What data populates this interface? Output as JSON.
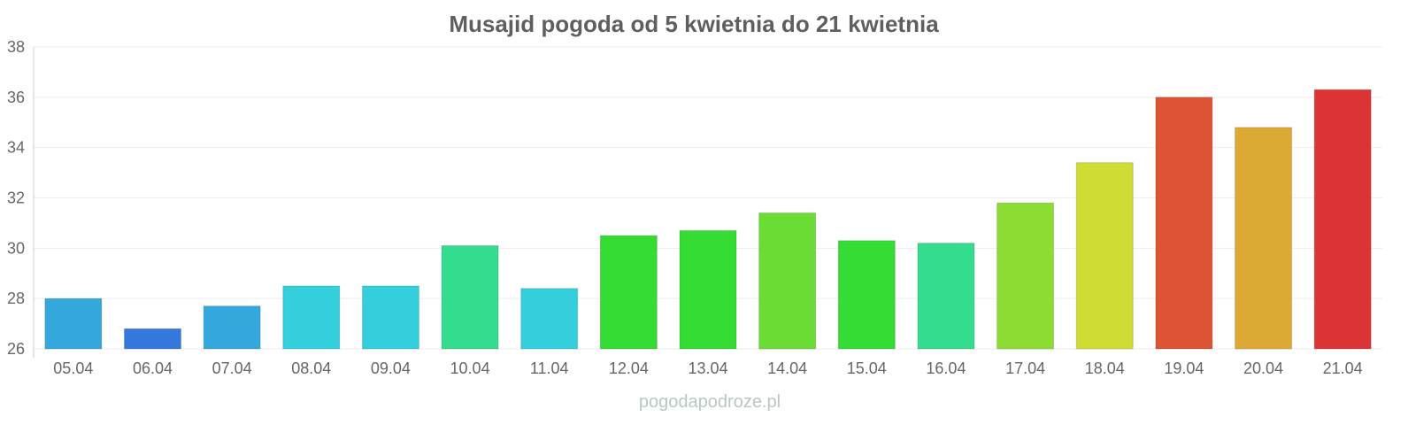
{
  "chart_data": {
    "type": "bar",
    "title": "Musajid pogoda od 5 kwietnia do 21 kwietnia",
    "xlabel": "",
    "ylabel": "",
    "ylim": [
      26,
      38
    ],
    "yticks": [
      "26",
      "28",
      "30",
      "32",
      "34",
      "36",
      "38"
    ],
    "grid": true,
    "categories": [
      "05.04",
      "06.04",
      "07.04",
      "08.04",
      "09.04",
      "10.04",
      "11.04",
      "12.04",
      "13.04",
      "14.04",
      "15.04",
      "16.04",
      "17.04",
      "18.04",
      "19.04",
      "20.04",
      "21.04"
    ],
    "values": [
      28.0,
      26.8,
      27.7,
      28.5,
      28.5,
      30.1,
      28.4,
      30.5,
      30.7,
      31.4,
      30.3,
      30.2,
      31.8,
      33.4,
      36.0,
      34.8,
      36.3
    ],
    "colors": [
      "#34a8dc",
      "#3478dc",
      "#34a8dc",
      "#34cfdc",
      "#34cfdc",
      "#34dc8d",
      "#34cfdc",
      "#34dc34",
      "#34dc34",
      "#6adc34",
      "#34dc34",
      "#34dc8d",
      "#8ddc34",
      "#cfdc34",
      "#dc5434",
      "#dcaa34",
      "#dc3434"
    ],
    "watermark": "pogodapodroze.pl"
  }
}
